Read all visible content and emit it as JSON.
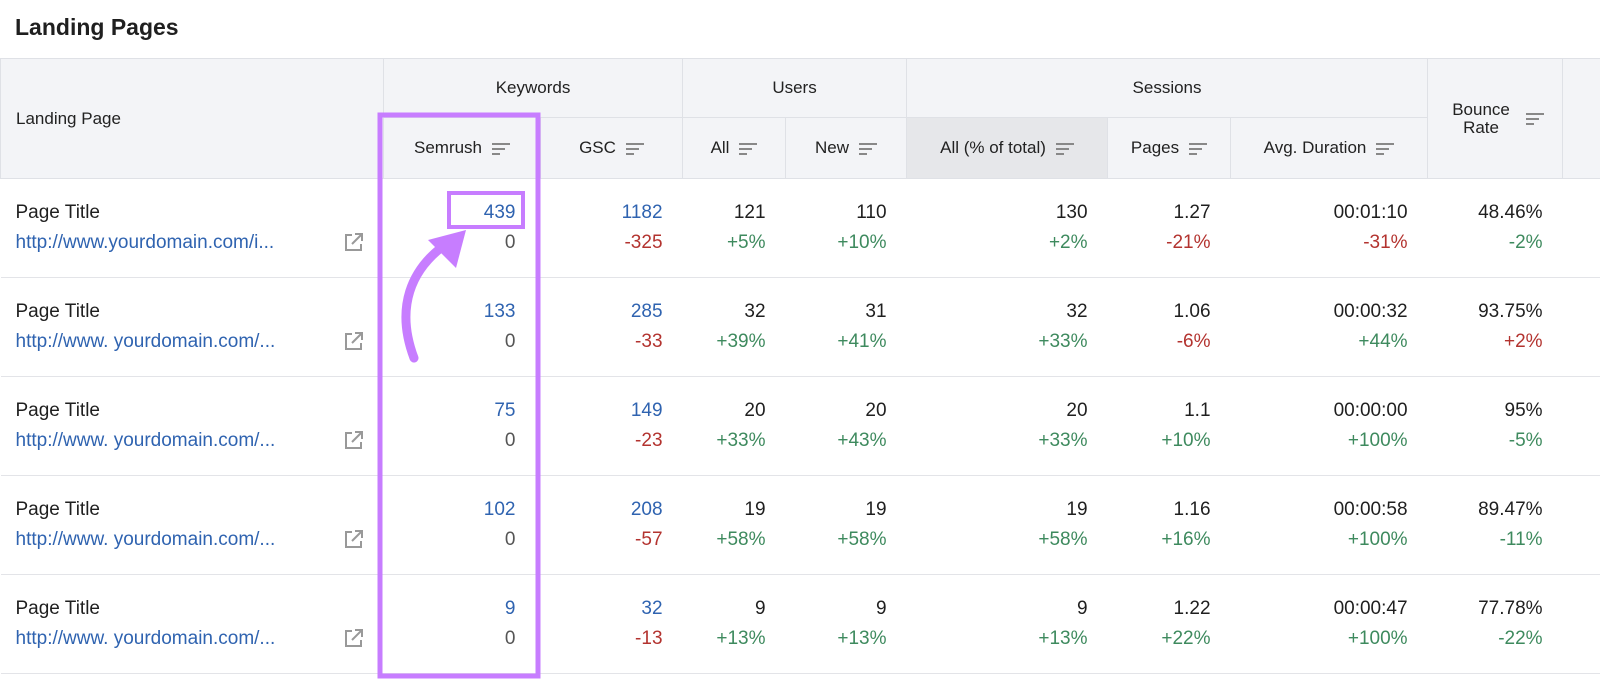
{
  "header": {
    "title": "Landing Pages"
  },
  "table": {
    "groups": [
      "Keywords",
      "Users",
      "Sessions"
    ],
    "columns": [
      "Landing Page",
      "Semrush",
      "GSC",
      "All",
      "New",
      "All (% of total)",
      "Pages",
      "Avg. Duration",
      "Bounce Rate"
    ],
    "rows": [
      [
        {
          "title": "Page Title",
          "url": "http://www.yourdomain.com/i..."
        },
        {
          "value": "439",
          "change": "0"
        },
        {
          "value": "1182",
          "change": "-325"
        },
        {
          "value": "121",
          "change": "+5%"
        },
        {
          "value": "110",
          "change": "+10%"
        },
        {
          "value": "130",
          "change": "+2%"
        },
        {
          "value": "1.27",
          "change": "-21%"
        },
        {
          "value": "00:01:10",
          "change": "-31%"
        },
        {
          "value": "48.46%",
          "change": "-2%"
        }
      ],
      [
        {
          "title": "Page Title",
          "url": "http://www. yourdomain.com/..."
        },
        {
          "value": "133",
          "change": "0"
        },
        {
          "value": "285",
          "change": "-33"
        },
        {
          "value": "32",
          "change": "+39%"
        },
        {
          "value": "31",
          "change": "+41%"
        },
        {
          "value": "32",
          "change": "+33%"
        },
        {
          "value": "1.06",
          "change": "-6%"
        },
        {
          "value": "00:00:32",
          "change": "+44%"
        },
        {
          "value": "93.75%",
          "change": "+2%"
        }
      ],
      [
        {
          "title": "Page Title",
          "url": "http://www. yourdomain.com/..."
        },
        {
          "value": "75",
          "change": "0"
        },
        {
          "value": "149",
          "change": "-23"
        },
        {
          "value": "20",
          "change": "+33%"
        },
        {
          "value": "20",
          "change": "+43%"
        },
        {
          "value": "20",
          "change": "+33%"
        },
        {
          "value": "1.1",
          "change": "+10%"
        },
        {
          "value": "00:00:00",
          "change": "+100%"
        },
        {
          "value": "95%",
          "change": "-5%"
        }
      ],
      [
        {
          "title": "Page Title",
          "url": "http://www. yourdomain.com/..."
        },
        {
          "value": "102",
          "change": "0"
        },
        {
          "value": "208",
          "change": "-57"
        },
        {
          "value": "19",
          "change": "+58%"
        },
        {
          "value": "19",
          "change": "+58%"
        },
        {
          "value": "19",
          "change": "+58%"
        },
        {
          "value": "1.16",
          "change": "+16%"
        },
        {
          "value": "00:00:58",
          "change": "+100%"
        },
        {
          "value": "89.47%",
          "change": "-11%"
        }
      ],
      [
        {
          "title": "Page Title",
          "url": "http://www. yourdomain.com/..."
        },
        {
          "value": "9",
          "change": "0"
        },
        {
          "value": "32",
          "change": "-13"
        },
        {
          "value": "9",
          "change": "+13%"
        },
        {
          "value": "9",
          "change": "+13%"
        },
        {
          "value": "9",
          "change": "+13%"
        },
        {
          "value": "1.22",
          "change": "+22%"
        },
        {
          "value": "00:00:47",
          "change": "+100%"
        },
        {
          "value": "77.78%",
          "change": "-22%"
        }
      ]
    ]
  }
}
